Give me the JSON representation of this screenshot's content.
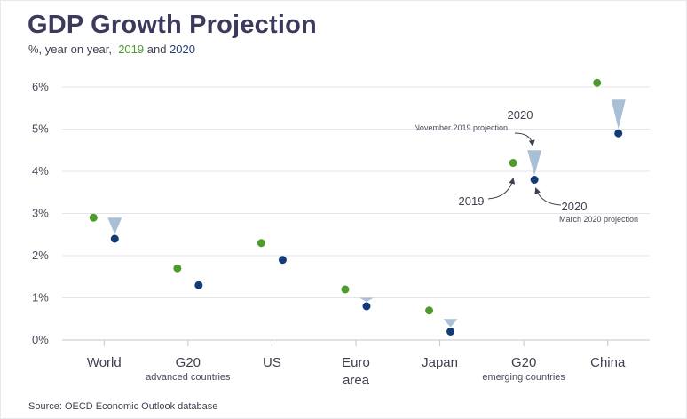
{
  "header": {
    "title": "GDP Growth Projection",
    "subtitle_prefix": "%, year on year,",
    "subtitle_2019": "2019",
    "subtitle_and": "and",
    "subtitle_2020": "2020"
  },
  "footer": {
    "source": "Source: OECD Economic Outlook database"
  },
  "colors": {
    "y2019": "#4e9a2a",
    "y2020": "#123b78",
    "triangle": "#a9bfd6",
    "grid": "#e4e4ea",
    "axis": "#c4c4cc"
  },
  "annotations": {
    "nov_year": "2020",
    "nov_label": "November 2019 projection",
    "y2019_label": "2019",
    "mar_year": "2020",
    "mar_label": "March 2020 projection"
  },
  "chart_data": {
    "type": "scatter",
    "title": "GDP Growth Projection",
    "ylabel": "%, year on year",
    "ylim": [
      0,
      6
    ],
    "yticks": [
      0,
      1,
      2,
      3,
      4,
      5,
      6
    ],
    "ytick_labels": [
      "0%",
      "1%",
      "2%",
      "3%",
      "4%",
      "5%",
      "6%"
    ],
    "categories": [
      {
        "name": "World",
        "sub": "",
        "line2": ""
      },
      {
        "name": "G20",
        "sub": "advanced countries",
        "line2": ""
      },
      {
        "name": "US",
        "sub": "",
        "line2": ""
      },
      {
        "name": "Euro",
        "sub": "",
        "line2": "area"
      },
      {
        "name": "Japan",
        "sub": "",
        "line2": ""
      },
      {
        "name": "G20",
        "sub": "emerging countries",
        "line2": ""
      },
      {
        "name": "China",
        "sub": "",
        "line2": ""
      }
    ],
    "series": [
      {
        "name": "2019",
        "values": [
          2.9,
          1.7,
          2.3,
          1.2,
          0.7,
          4.2,
          6.1
        ]
      },
      {
        "name": "2020 (March 2020 projection)",
        "values": [
          2.4,
          1.3,
          1.9,
          0.8,
          0.2,
          3.8,
          4.9
        ]
      },
      {
        "name": "2020 (November 2019 projection)",
        "values": [
          2.9,
          1.4,
          1.9,
          1.0,
          0.5,
          4.5,
          5.7
        ]
      }
    ]
  }
}
